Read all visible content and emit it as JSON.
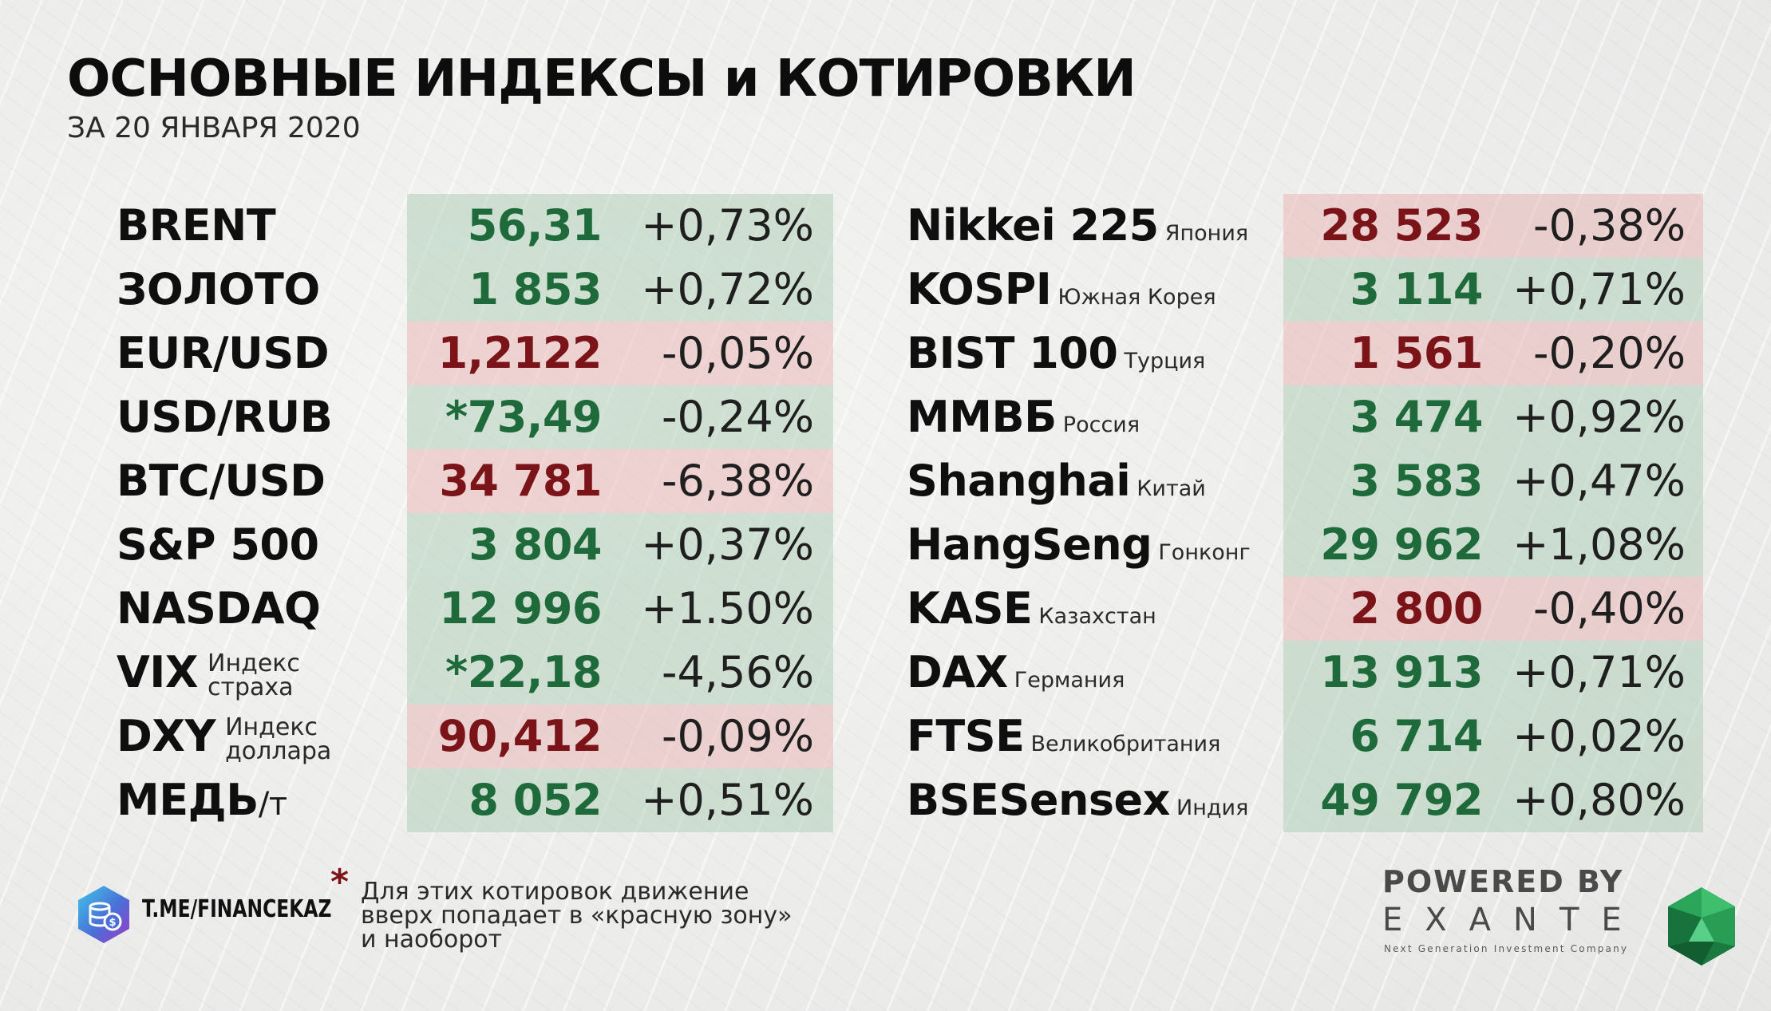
{
  "header": {
    "title": "ОСНОВНЫЕ ИНДЕКСЫ и КОТИРОВКИ",
    "subtitle": "ЗА 20 ЯНВАРЯ 2020"
  },
  "colors": {
    "up_text": "#1e6a3a",
    "down_text": "#7a1418",
    "up_band": "#a4cab0",
    "down_band": "#e6aaaa"
  },
  "left_table": [
    {
      "name": "BRENT",
      "value": "56,31",
      "change": "+0,73%",
      "direction": "up"
    },
    {
      "name": "ЗОЛОТО",
      "value": "1 853",
      "change": "+0,72%",
      "direction": "up"
    },
    {
      "name": "EUR/USD",
      "value": "1,2122",
      "change": "-0,05%",
      "direction": "down"
    },
    {
      "name": "USD/RUB",
      "value": "*73,49",
      "change": "-0,24%",
      "direction": "up"
    },
    {
      "name": "BTC/USD",
      "value": "34 781",
      "change": "-6,38%",
      "direction": "down"
    },
    {
      "name": "S&P 500",
      "value": "3 804",
      "change": "+0,37%",
      "direction": "up"
    },
    {
      "name": "NASDAQ",
      "value": "12 996",
      "change": "+1.50%",
      "direction": "up"
    },
    {
      "name": "VIX",
      "note_line1": "Индекс",
      "note_line2": "страха",
      "value": "*22,18",
      "change": "-4,56%",
      "direction": "up"
    },
    {
      "name": "DXY",
      "note_line1": "Индекс",
      "note_line2": "доллара",
      "value": "90,412",
      "change": "-0,09%",
      "direction": "down"
    },
    {
      "name": "МЕДЬ",
      "suffix": "/т",
      "value": "8 052",
      "change": "+0,51%",
      "direction": "up"
    }
  ],
  "right_table": [
    {
      "name": "Nikkei 225",
      "country": "Япония",
      "value": "28 523",
      "change": "-0,38%",
      "direction": "down"
    },
    {
      "name": "KOSPI",
      "country": "Южная Корея",
      "value": "3 114",
      "change": "+0,71%",
      "direction": "up"
    },
    {
      "name": "BIST 100",
      "country": "Турция",
      "value": "1 561",
      "change": "-0,20%",
      "direction": "down"
    },
    {
      "name": "ММВБ",
      "country": "Россия",
      "value": "3 474",
      "change": "+0,92%",
      "direction": "up"
    },
    {
      "name": "Shanghai",
      "country": "Китай",
      "value": "3 583",
      "change": "+0,47%",
      "direction": "up"
    },
    {
      "name": "HangSeng",
      "country": "Гонконг",
      "value": "29 962",
      "change": "+1,08%",
      "direction": "up"
    },
    {
      "name": "KASE",
      "country": "Казахстан",
      "value": "2 800",
      "change": "-0,40%",
      "direction": "down"
    },
    {
      "name": "DAX",
      "country": "Германия",
      "value": "13 913",
      "change": "+0,71%",
      "direction": "up"
    },
    {
      "name": "FTSE",
      "country": "Великобритания",
      "value": "6 714",
      "change": "+0,02%",
      "direction": "up"
    },
    {
      "name": "BSESensex",
      "country": "Индия",
      "value": "49 792",
      "change": "+0,80%",
      "direction": "up"
    }
  ],
  "footer": {
    "telegram_label": "T.ME/FINANCEKAZ",
    "telegram_icon": "telegram-coins-icon",
    "asterisk": "*",
    "note_line1": "Для этих котировок движение",
    "note_line2": "вверх попадает в «красную зону»",
    "note_line3": "и наоборот",
    "powered_by": "POWERED BY",
    "brand": "EXANTE",
    "tagline": "Next Generation Investment Company",
    "brand_icon": "green-gem-icon"
  }
}
